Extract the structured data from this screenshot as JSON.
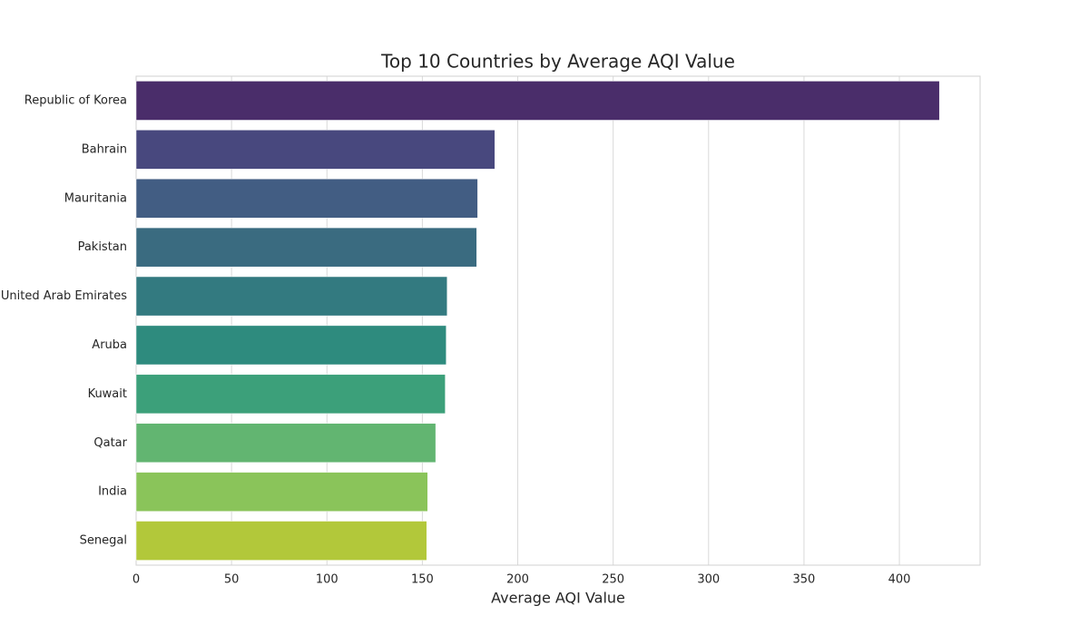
{
  "chart_data": {
    "type": "barh",
    "title": "Top 10 Countries by Average AQI Value",
    "x_label": "Average AQI Value",
    "categories": [
      "Republic of Korea",
      "Bahrain",
      "Mauritania",
      "Pakistan",
      "United Arab Emirates",
      "Aruba",
      "Kuwait",
      "Qatar",
      "India",
      "Senegal"
    ],
    "values": [
      421,
      188,
      179,
      178.5,
      163,
      162.5,
      162,
      157,
      152.8,
      152.3
    ],
    "colors": [
      "#4a2d6a",
      "#48487e",
      "#425d83",
      "#3a6b80",
      "#337a80",
      "#2e8b7e",
      "#3ca07a",
      "#62b571",
      "#8ac45a",
      "#b2c83a"
    ],
    "xlim": [
      0,
      442.3
    ],
    "xticks": [
      0,
      50,
      100,
      150,
      200,
      250,
      300,
      350,
      400
    ],
    "grid": true
  }
}
